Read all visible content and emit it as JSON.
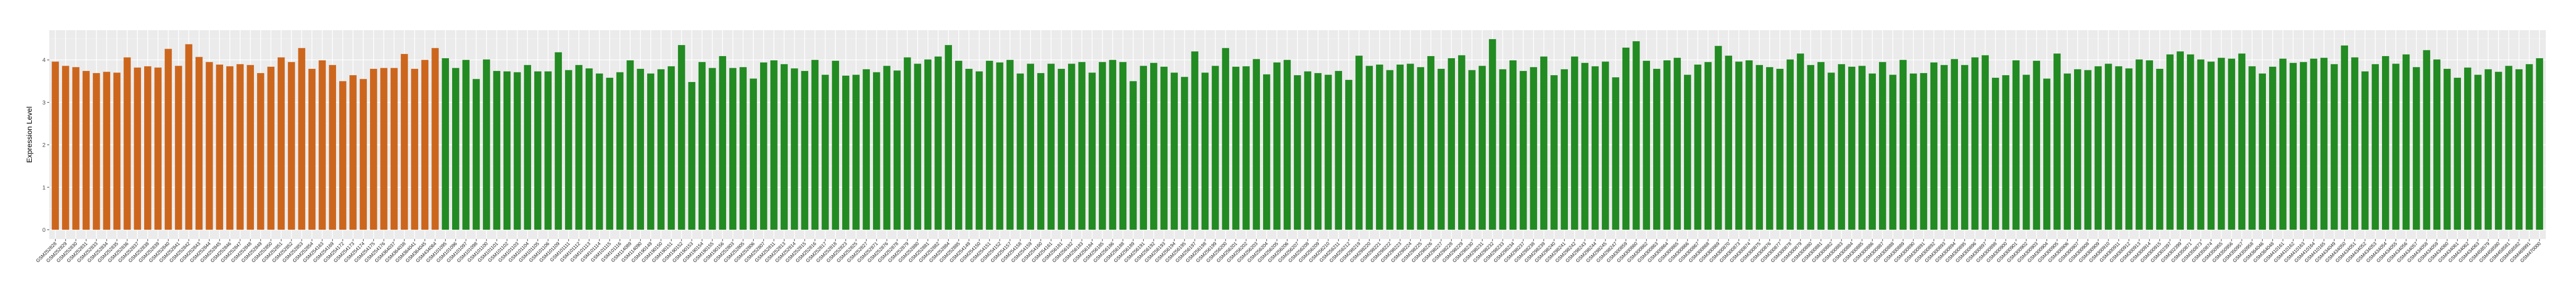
{
  "chart_data": {
    "type": "bar",
    "title": "",
    "xlabel": "",
    "ylabel": "Expression Level",
    "ylim": [
      -0.22,
      4.7
    ],
    "yticks": [
      "0",
      "1",
      "2",
      "3",
      "4"
    ],
    "grid": true,
    "legend": "none",
    "series": [
      {
        "color": "#CD661D",
        "categories": [
          "GSM252828",
          "GSM252829",
          "GSM252830",
          "GSM252831",
          "GSM252833",
          "GSM252834",
          "GSM252835",
          "GSM252836",
          "GSM252837",
          "GSM252838",
          "GSM252839",
          "GSM252840",
          "GSM252841",
          "GSM252842",
          "GSM252843",
          "GSM252844",
          "GSM252845",
          "GSM252846",
          "GSM252847",
          "GSM252848",
          "GSM252849",
          "GSM252850",
          "GSM252851",
          "GSM252852",
          "GSM252853",
          "GSM252854",
          "GSM254163",
          "GSM254169",
          "GSM254172",
          "GSM254173",
          "GSM254174",
          "GSM254175",
          "GSM254176",
          "GSM364037",
          "GSM364038",
          "GSM364041",
          "GSM364045",
          "GSM434064"
        ],
        "values": [
          3.96,
          3.86,
          3.83,
          3.74,
          3.69,
          3.72,
          3.7,
          4.06,
          3.82,
          3.85,
          3.82,
          4.26,
          3.86,
          4.37,
          4.07,
          3.95,
          3.89,
          3.85,
          3.9,
          3.88,
          3.69,
          3.84,
          4.06,
          3.95,
          4.28,
          3.79,
          3.99,
          3.88,
          3.5,
          3.64,
          3.55,
          3.79,
          3.81,
          3.81,
          4.14,
          3.79,
          4.0,
          4.28
        ]
      },
      {
        "color": "#228B22",
        "categories": [
          "GSM101095",
          "GSM101096",
          "GSM101097",
          "GSM101098",
          "GSM101100",
          "GSM101101",
          "GSM101102",
          "GSM101103",
          "GSM101104",
          "GSM101105",
          "GSM101106",
          "GSM101109",
          "GSM101111",
          "GSM101112",
          "GSM101113",
          "GSM101114",
          "GSM101115",
          "GSM101116",
          "GSM114089",
          "GSM114090",
          "GSM190149",
          "GSM190150",
          "GSM190151",
          "GSM190152",
          "GSM190153",
          "GSM190154",
          "GSM190155",
          "GSM190156",
          "GSM252803",
          "GSM252805",
          "GSM252806",
          "GSM252807",
          "GSM252811",
          "GSM252813",
          "GSM252814",
          "GSM252815",
          "GSM252816",
          "GSM252817",
          "GSM252818",
          "GSM252823",
          "GSM252825",
          "GSM252827",
          "GSM252871",
          "GSM252876",
          "GSM252878",
          "GSM252879",
          "GSM252880",
          "GSM252881",
          "GSM252882",
          "GSM252884",
          "GSM252885",
          "GSM254149",
          "GSM254150",
          "GSM254151",
          "GSM254152",
          "GSM254157",
          "GSM254158",
          "GSM254159",
          "GSM254160",
          "GSM254161",
          "GSM256181",
          "GSM256182",
          "GSM256183",
          "GSM256184",
          "GSM256185",
          "GSM256186",
          "GSM256188",
          "GSM256189",
          "GSM256191",
          "GSM256192",
          "GSM256193",
          "GSM256194",
          "GSM256195",
          "GSM256197",
          "GSM256198",
          "GSM256199",
          "GSM256200",
          "GSM256201",
          "GSM256202",
          "GSM256203",
          "GSM256204",
          "GSM256205",
          "GSM256206",
          "GSM256207",
          "GSM256208",
          "GSM256209",
          "GSM256210",
          "GSM256211",
          "GSM256212",
          "GSM298219",
          "GSM298220",
          "GSM298221",
          "GSM298222",
          "GSM298223",
          "GSM298224",
          "GSM298225",
          "GSM298226",
          "GSM298227",
          "GSM298228",
          "GSM298229",
          "GSM298230",
          "GSM298231",
          "GSM298232",
          "GSM298233",
          "GSM298234",
          "GSM298237",
          "GSM298238",
          "GSM298239",
          "GSM298240",
          "GSM298241",
          "GSM298242",
          "GSM298243",
          "GSM298244",
          "GSM298245",
          "GSM298247",
          "GSM300859",
          "GSM300860",
          "GSM300862",
          "GSM300863",
          "GSM300864",
          "GSM300865",
          "GSM300866",
          "GSM300867",
          "GSM300868",
          "GSM300869",
          "GSM300870",
          "GSM300873",
          "GSM300874",
          "GSM300875",
          "GSM300876",
          "GSM300877",
          "GSM300878",
          "GSM300879",
          "GSM300880",
          "GSM300881",
          "GSM300882",
          "GSM300883",
          "GSM300884",
          "GSM300885",
          "GSM300886",
          "GSM300887",
          "GSM300888",
          "GSM300889",
          "GSM300890",
          "GSM300891",
          "GSM300892",
          "GSM300893",
          "GSM300894",
          "GSM300895",
          "GSM300896",
          "GSM300897",
          "GSM300898",
          "GSM300900",
          "GSM300901",
          "GSM300902",
          "GSM300903",
          "GSM300904",
          "GSM300905",
          "GSM300906",
          "GSM300907",
          "GSM300908",
          "GSM300909",
          "GSM300910",
          "GSM300911",
          "GSM300912",
          "GSM300913",
          "GSM300914",
          "GSM300915",
          "GSM302397",
          "GSM302399",
          "GSM350871",
          "GSM350873",
          "GSM350874",
          "GSM350955",
          "GSM350956",
          "GSM350957",
          "GSM350958",
          "GSM364046",
          "GSM364048",
          "GSM410161",
          "GSM410162",
          "GSM410163",
          "GSM410164",
          "GSM410165",
          "GSM434049",
          "GSM434050",
          "GSM434051",
          "GSM434052",
          "GSM434053",
          "GSM434054",
          "GSM434055",
          "GSM434056",
          "GSM434057",
          "GSM434058",
          "GSM434059",
          "GSM434060",
          "GSM434061",
          "GSM434062",
          "GSM434063",
          "GSM458579",
          "GSM458580",
          "GSM458581",
          "GSM458582",
          "GSM469991",
          "GSM470000"
        ],
        "values": [
          4.04,
          3.81,
          4.0,
          3.55,
          4.01,
          3.74,
          3.73,
          3.71,
          3.88,
          3.73,
          3.73,
          4.18,
          3.76,
          3.88,
          3.8,
          3.68,
          3.58,
          3.71,
          3.99,
          3.79,
          3.68,
          3.78,
          3.85,
          4.35,
          3.48,
          3.95,
          3.81,
          4.09,
          3.81,
          3.83,
          3.56,
          3.94,
          3.99,
          3.9,
          3.8,
          3.74,
          4.0,
          3.65,
          3.98,
          3.63,
          3.65,
          3.78,
          3.71,
          3.86,
          3.75,
          4.06,
          3.91,
          4.01,
          4.08,
          4.35,
          3.98,
          3.79,
          3.73,
          3.98,
          3.94,
          4.0,
          3.68,
          3.91,
          3.69,
          3.91,
          3.79,
          3.91,
          3.95,
          3.7,
          3.95,
          4.0,
          3.95,
          3.5,
          3.86,
          3.93,
          3.84,
          3.7,
          3.6,
          4.2,
          3.7,
          3.86,
          4.28,
          3.84,
          3.85,
          4.02,
          3.66,
          3.94,
          4.0,
          3.64,
          3.73,
          3.69,
          3.65,
          3.74,
          3.53,
          4.1,
          3.86,
          3.89,
          3.76,
          3.89,
          3.91,
          3.83,
          4.09,
          3.79,
          4.04,
          4.11,
          3.76,
          3.86,
          4.49,
          3.78,
          3.99,
          3.74,
          3.83,
          4.08,
          3.64,
          3.78,
          4.08,
          3.93,
          3.85,
          3.96,
          3.59,
          4.29,
          4.44,
          3.98,
          3.79,
          3.99,
          4.05,
          3.65,
          3.89,
          3.95,
          4.33,
          4.1,
          3.96,
          3.99,
          3.88,
          3.83,
          3.79,
          4.01,
          4.15,
          3.88,
          3.95,
          3.7,
          3.9,
          3.84,
          3.86,
          3.68,
          3.95,
          3.65,
          4.0,
          3.68,
          3.69,
          3.94,
          3.88,
          4.02,
          3.88,
          4.06,
          4.11,
          3.58,
          3.64,
          3.99,
          3.65,
          3.98,
          3.56,
          4.15,
          3.68,
          3.78,
          3.76,
          3.85,
          3.91,
          3.85,
          3.8,
          4.01,
          3.99,
          3.79,
          4.13,
          4.2,
          4.13,
          4.01,
          3.96,
          4.05,
          4.03,
          4.15,
          3.85,
          3.68,
          3.84,
          4.03,
          3.93,
          3.95,
          4.03,
          4.05,
          3.9,
          4.34,
          4.06,
          3.73,
          3.9,
          4.09,
          3.91,
          4.13,
          3.83,
          4.23,
          4.01,
          3.79,
          3.58,
          3.82,
          3.65,
          3.78,
          3.72,
          3.86,
          3.78,
          3.9,
          4.04
        ]
      }
    ]
  }
}
